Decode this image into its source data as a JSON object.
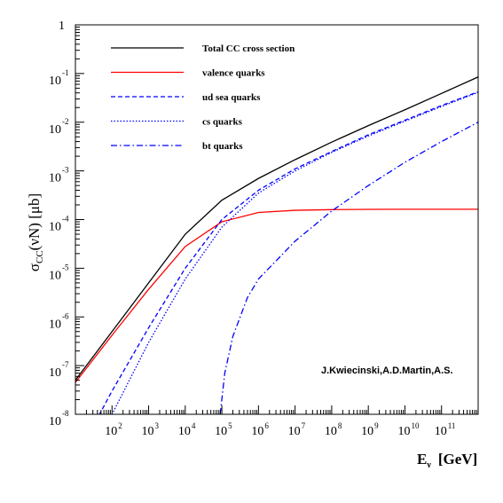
{
  "chart_data": {
    "type": "line",
    "xscale": "log",
    "yscale": "log",
    "xlim": [
      10,
      1000000000000.0
    ],
    "ylim": [
      1e-08,
      1
    ],
    "ylabel": "σCC(νN) [μb]",
    "ylabel_parts": {
      "sigma": "σ",
      "sub": "CC",
      "rest": "(νN) [μb]"
    },
    "xlabel": "Eν  [GeV]",
    "xlabel_parts": {
      "main": "E",
      "sub": "ν",
      "rest": "[GeV]"
    },
    "x_ticks": [
      {
        "exp": 2,
        "mantissa": "10",
        "sup": "2"
      },
      {
        "exp": 3,
        "mantissa": "10",
        "sup": "3"
      },
      {
        "exp": 4,
        "mantissa": "10",
        "sup": "4"
      },
      {
        "exp": 5,
        "mantissa": "10",
        "sup": "5"
      },
      {
        "exp": 6,
        "mantissa": "10",
        "sup": "6"
      },
      {
        "exp": 7,
        "mantissa": "10",
        "sup": "7"
      },
      {
        "exp": 8,
        "mantissa": "10",
        "sup": "8"
      },
      {
        "exp": 9,
        "mantissa": "10",
        "sup": "9"
      },
      {
        "exp": 10,
        "mantissa": "10",
        "sup": "10"
      },
      {
        "exp": 11,
        "mantissa": "10",
        "sup": "11"
      }
    ],
    "y_ticks": [
      {
        "exp": 0,
        "mantissa": "1",
        "sup": ""
      },
      {
        "exp": -1,
        "mantissa": "10",
        "sup": "-1"
      },
      {
        "exp": -2,
        "mantissa": "10",
        "sup": "-2"
      },
      {
        "exp": -3,
        "mantissa": "10",
        "sup": "-3"
      },
      {
        "exp": -4,
        "mantissa": "10",
        "sup": "-4"
      },
      {
        "exp": -5,
        "mantissa": "10",
        "sup": "-5"
      },
      {
        "exp": -6,
        "mantissa": "10",
        "sup": "-6"
      },
      {
        "exp": -7,
        "mantissa": "10",
        "sup": "-7"
      },
      {
        "exp": -8,
        "mantissa": "10",
        "sup": "-8"
      }
    ],
    "legend_position": "top-left",
    "annotation": "J.Kwiecinski,A.D.Martin,A.S.",
    "series": [
      {
        "name": "Total CC cross section",
        "color": "#000000",
        "dash": "solid",
        "x": [
          10,
          100,
          1000,
          10000,
          100000,
          1000000,
          10000000,
          100000000,
          1000000000,
          10000000000,
          100000000000,
          1000000000000
        ],
        "y": [
          5e-08,
          5e-07,
          5e-06,
          5e-05,
          0.00025,
          0.0007,
          0.0017,
          0.0039,
          0.0085,
          0.018,
          0.039,
          0.085
        ]
      },
      {
        "name": "valence quarks",
        "color": "#ff0000",
        "dash": "solid",
        "x": [
          10,
          100,
          1000,
          10000,
          100000,
          1000000,
          10000000,
          100000000,
          1000000000,
          10000000000,
          100000000000,
          1000000000000
        ],
        "y": [
          4.5e-08,
          4.2e-07,
          3.7e-06,
          2.8e-05,
          9e-05,
          0.00014,
          0.000155,
          0.00016,
          0.000162,
          0.000163,
          0.000163,
          0.000163
        ]
      },
      {
        "name": "ud sea quarks",
        "color": "#0000ff",
        "dash": "dashed",
        "x": [
          10,
          100,
          1000,
          10000,
          100000,
          1000000,
          10000000,
          100000000,
          1000000000,
          10000000000,
          100000000000,
          1000000000000
        ],
        "y": [
          1.2e-09,
          3e-08,
          6e-07,
          1e-05,
          0.0001,
          0.0004,
          0.0011,
          0.0025,
          0.0055,
          0.011,
          0.022,
          0.042
        ]
      },
      {
        "name": "cs quarks",
        "color": "#0000ff",
        "dash": "dotted",
        "x": [
          10,
          100,
          1000,
          10000,
          100000,
          1000000,
          10000000,
          100000000,
          1000000000,
          10000000000,
          100000000000,
          1000000000000
        ],
        "y": [
          2e-10,
          1e-08,
          3e-07,
          6e-06,
          7e-05,
          0.00035,
          0.001,
          0.0024,
          0.0052,
          0.0105,
          0.021,
          0.041
        ]
      },
      {
        "name": "bt quarks",
        "color": "#0000ff",
        "dash": "dashdot",
        "x": [
          90000,
          120000,
          200000,
          500000,
          1000000,
          10000000,
          100000000,
          1000000000,
          10000000000,
          100000000000,
          1000000000000
        ],
        "y": [
          1e-08,
          7e-08,
          4e-07,
          2.5e-06,
          6e-06,
          3.6e-05,
          0.00015,
          0.0005,
          0.0015,
          0.004,
          0.01
        ]
      }
    ]
  }
}
